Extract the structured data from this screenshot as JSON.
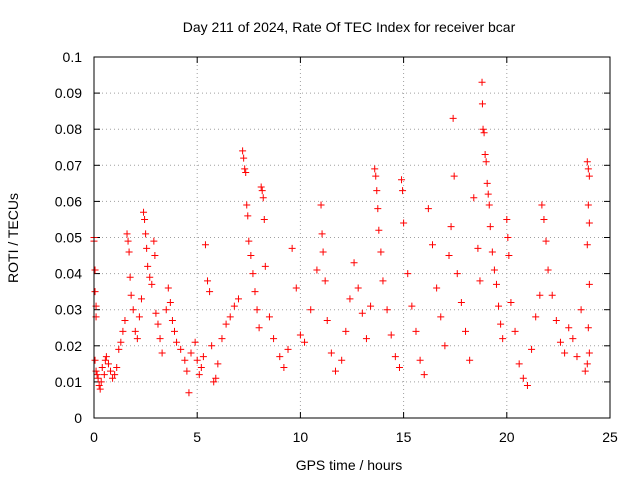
{
  "chart_data": {
    "type": "scatter",
    "title": "Day 211 of 2024, Rate Of TEC Index for receiver bcar",
    "xlabel": "GPS time / hours",
    "ylabel": "ROTI / TECUs",
    "xlim": [
      0,
      25
    ],
    "ylim": [
      0,
      0.1
    ],
    "xticks": [
      0,
      5,
      10,
      15,
      20,
      25
    ],
    "xtick_labels": [
      "0",
      "5",
      "10",
      "15",
      "20",
      "25"
    ],
    "yticks": [
      0,
      0.01,
      0.02,
      0.03,
      0.04,
      0.05,
      0.06,
      0.07,
      0.08,
      0.09,
      0.1
    ],
    "ytick_labels": [
      "0",
      "0.01",
      "0.02",
      "0.03",
      "0.04",
      "0.05",
      "0.06",
      "0.07",
      "0.08",
      "0.09",
      "0.1"
    ],
    "grid": true,
    "marker": "plus",
    "color": "#ff0000",
    "series": [
      {
        "points": [
          [
            0.0,
            0.05
          ],
          [
            0.0,
            0.049
          ],
          [
            0.05,
            0.041
          ],
          [
            0.05,
            0.035
          ],
          [
            0.1,
            0.031
          ],
          [
            0.1,
            0.028
          ],
          [
            0.05,
            0.016
          ],
          [
            0.1,
            0.013
          ],
          [
            0.15,
            0.012
          ],
          [
            0.2,
            0.011
          ],
          [
            0.25,
            0.009
          ],
          [
            0.3,
            0.008
          ],
          [
            0.35,
            0.01
          ],
          [
            0.4,
            0.014
          ],
          [
            0.5,
            0.012
          ],
          [
            0.55,
            0.016
          ],
          [
            0.6,
            0.017
          ],
          [
            0.7,
            0.015
          ],
          [
            0.8,
            0.013
          ],
          [
            0.9,
            0.011
          ],
          [
            1.0,
            0.012
          ],
          [
            1.1,
            0.014
          ],
          [
            1.2,
            0.019
          ],
          [
            1.3,
            0.021
          ],
          [
            1.4,
            0.024
          ],
          [
            1.5,
            0.027
          ],
          [
            1.6,
            0.051
          ],
          [
            1.65,
            0.049
          ],
          [
            1.7,
            0.046
          ],
          [
            1.75,
            0.039
          ],
          [
            1.8,
            0.034
          ],
          [
            1.9,
            0.03
          ],
          [
            2.0,
            0.024
          ],
          [
            2.1,
            0.022
          ],
          [
            2.2,
            0.028
          ],
          [
            2.3,
            0.033
          ],
          [
            2.4,
            0.057
          ],
          [
            2.45,
            0.055
          ],
          [
            2.5,
            0.051
          ],
          [
            2.55,
            0.047
          ],
          [
            2.6,
            0.042
          ],
          [
            2.7,
            0.039
          ],
          [
            2.8,
            0.037
          ],
          [
            2.9,
            0.049
          ],
          [
            2.95,
            0.045
          ],
          [
            3.0,
            0.029
          ],
          [
            3.1,
            0.026
          ],
          [
            3.2,
            0.022
          ],
          [
            3.3,
            0.018
          ],
          [
            3.5,
            0.03
          ],
          [
            3.6,
            0.036
          ],
          [
            3.7,
            0.032
          ],
          [
            3.8,
            0.027
          ],
          [
            3.9,
            0.024
          ],
          [
            4.0,
            0.021
          ],
          [
            4.2,
            0.019
          ],
          [
            4.4,
            0.016
          ],
          [
            4.5,
            0.013
          ],
          [
            4.6,
            0.007
          ],
          [
            4.7,
            0.018
          ],
          [
            4.9,
            0.021
          ],
          [
            5.0,
            0.016
          ],
          [
            5.1,
            0.012
          ],
          [
            5.2,
            0.014
          ],
          [
            5.3,
            0.017
          ],
          [
            5.4,
            0.048
          ],
          [
            5.5,
            0.038
          ],
          [
            5.6,
            0.035
          ],
          [
            5.7,
            0.02
          ],
          [
            5.8,
            0.01
          ],
          [
            5.9,
            0.011
          ],
          [
            6.0,
            0.015
          ],
          [
            6.2,
            0.022
          ],
          [
            6.4,
            0.026
          ],
          [
            6.6,
            0.028
          ],
          [
            6.8,
            0.031
          ],
          [
            7.0,
            0.033
          ],
          [
            7.2,
            0.074
          ],
          [
            7.25,
            0.072
          ],
          [
            7.3,
            0.069
          ],
          [
            7.35,
            0.068
          ],
          [
            7.4,
            0.059
          ],
          [
            7.45,
            0.056
          ],
          [
            7.5,
            0.049
          ],
          [
            7.6,
            0.045
          ],
          [
            7.7,
            0.04
          ],
          [
            7.8,
            0.035
          ],
          [
            7.9,
            0.03
          ],
          [
            8.0,
            0.025
          ],
          [
            8.1,
            0.064
          ],
          [
            8.15,
            0.063
          ],
          [
            8.2,
            0.061
          ],
          [
            8.25,
            0.055
          ],
          [
            8.3,
            0.042
          ],
          [
            8.5,
            0.028
          ],
          [
            8.7,
            0.022
          ],
          [
            9.0,
            0.017
          ],
          [
            9.2,
            0.014
          ],
          [
            9.4,
            0.019
          ],
          [
            9.6,
            0.047
          ],
          [
            9.8,
            0.036
          ],
          [
            10.0,
            0.023
          ],
          [
            10.2,
            0.021
          ],
          [
            10.5,
            0.03
          ],
          [
            10.8,
            0.041
          ],
          [
            11.0,
            0.059
          ],
          [
            11.05,
            0.051
          ],
          [
            11.1,
            0.046
          ],
          [
            11.2,
            0.038
          ],
          [
            11.3,
            0.027
          ],
          [
            11.5,
            0.018
          ],
          [
            11.7,
            0.013
          ],
          [
            12.0,
            0.016
          ],
          [
            12.2,
            0.024
          ],
          [
            12.4,
            0.033
          ],
          [
            12.6,
            0.043
          ],
          [
            12.8,
            0.036
          ],
          [
            13.0,
            0.029
          ],
          [
            13.2,
            0.022
          ],
          [
            13.4,
            0.031
          ],
          [
            13.6,
            0.069
          ],
          [
            13.65,
            0.067
          ],
          [
            13.7,
            0.063
          ],
          [
            13.75,
            0.058
          ],
          [
            13.8,
            0.052
          ],
          [
            13.9,
            0.046
          ],
          [
            14.0,
            0.038
          ],
          [
            14.2,
            0.03
          ],
          [
            14.4,
            0.023
          ],
          [
            14.6,
            0.017
          ],
          [
            14.8,
            0.014
          ],
          [
            14.9,
            0.066
          ],
          [
            14.95,
            0.063
          ],
          [
            15.0,
            0.054
          ],
          [
            15.2,
            0.04
          ],
          [
            15.4,
            0.031
          ],
          [
            15.6,
            0.024
          ],
          [
            15.8,
            0.016
          ],
          [
            16.0,
            0.012
          ],
          [
            16.2,
            0.058
          ],
          [
            16.4,
            0.048
          ],
          [
            16.6,
            0.036
          ],
          [
            16.8,
            0.028
          ],
          [
            17.0,
            0.02
          ],
          [
            17.2,
            0.045
          ],
          [
            17.3,
            0.053
          ],
          [
            17.4,
            0.083
          ],
          [
            17.45,
            0.067
          ],
          [
            17.6,
            0.04
          ],
          [
            17.8,
            0.032
          ],
          [
            18.0,
            0.024
          ],
          [
            18.2,
            0.016
          ],
          [
            18.4,
            0.061
          ],
          [
            18.6,
            0.047
          ],
          [
            18.7,
            0.038
          ],
          [
            18.8,
            0.093
          ],
          [
            18.82,
            0.087
          ],
          [
            18.85,
            0.08
          ],
          [
            18.9,
            0.079
          ],
          [
            18.95,
            0.073
          ],
          [
            19.0,
            0.071
          ],
          [
            19.05,
            0.065
          ],
          [
            19.1,
            0.062
          ],
          [
            19.15,
            0.059
          ],
          [
            19.2,
            0.053
          ],
          [
            19.3,
            0.046
          ],
          [
            19.4,
            0.041
          ],
          [
            19.5,
            0.037
          ],
          [
            19.6,
            0.031
          ],
          [
            19.7,
            0.026
          ],
          [
            19.8,
            0.022
          ],
          [
            20.0,
            0.055
          ],
          [
            20.05,
            0.05
          ],
          [
            20.1,
            0.045
          ],
          [
            20.2,
            0.032
          ],
          [
            20.4,
            0.024
          ],
          [
            20.6,
            0.015
          ],
          [
            20.8,
            0.011
          ],
          [
            21.0,
            0.009
          ],
          [
            21.2,
            0.019
          ],
          [
            21.4,
            0.028
          ],
          [
            21.6,
            0.034
          ],
          [
            21.7,
            0.059
          ],
          [
            21.8,
            0.055
          ],
          [
            21.9,
            0.049
          ],
          [
            22.0,
            0.041
          ],
          [
            22.2,
            0.034
          ],
          [
            22.4,
            0.027
          ],
          [
            22.6,
            0.021
          ],
          [
            22.8,
            0.018
          ],
          [
            23.0,
            0.025
          ],
          [
            23.2,
            0.022
          ],
          [
            23.4,
            0.017
          ],
          [
            23.6,
            0.03
          ],
          [
            23.8,
            0.013
          ],
          [
            23.9,
            0.071
          ],
          [
            23.95,
            0.069
          ],
          [
            24.0,
            0.067
          ],
          [
            23.95,
            0.059
          ],
          [
            24.0,
            0.054
          ],
          [
            23.9,
            0.048
          ],
          [
            24.0,
            0.037
          ],
          [
            23.95,
            0.025
          ],
          [
            24.0,
            0.018
          ],
          [
            23.9,
            0.015
          ]
        ]
      }
    ]
  }
}
